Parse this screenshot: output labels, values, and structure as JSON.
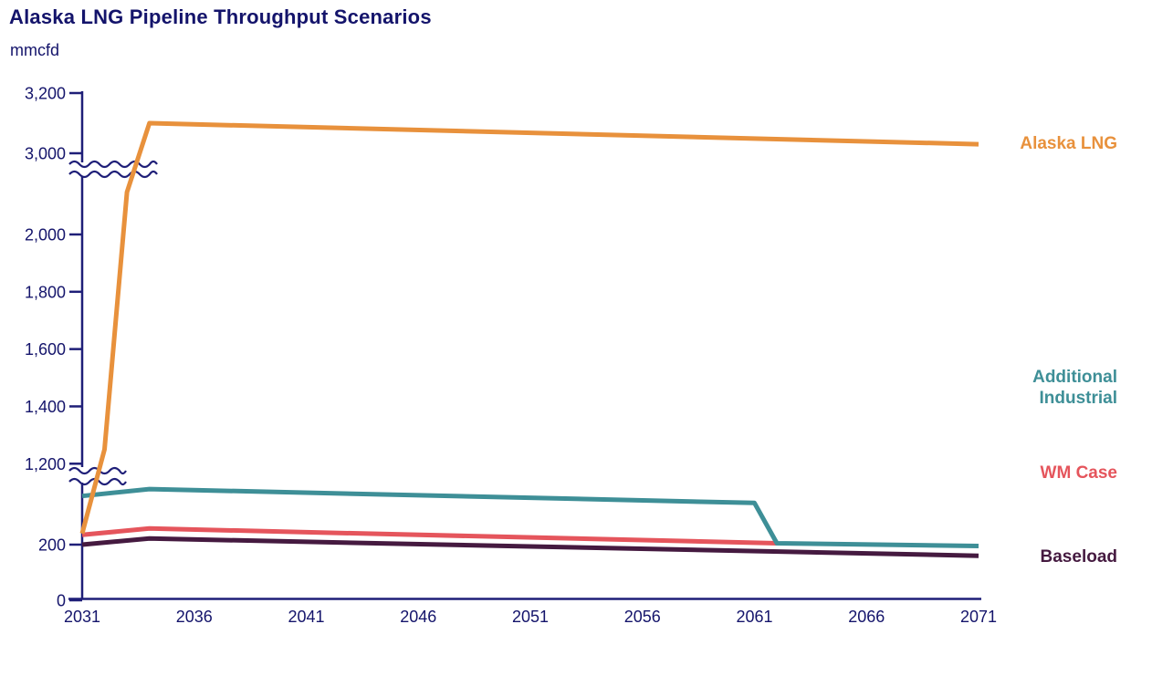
{
  "header": {
    "title": "Alaska LNG Pipeline Throughput Scenarios",
    "unit": "mmcfd"
  },
  "colors": {
    "navy_text": "#14146B",
    "axis": "#1F1F78",
    "orange": "#E8913C",
    "teal": "#3E8F97",
    "coral": "#E5555C",
    "plum": "#451A40"
  },
  "chart_data": {
    "type": "line",
    "title": "Alaska LNG Pipeline Throughput Scenarios",
    "ylabel": "mmcfd",
    "xlabel": "",
    "grid": false,
    "legend_position": "right-outside",
    "x_range": [
      2031,
      2071
    ],
    "x_ticks": [
      2031,
      2036,
      2041,
      2046,
      2051,
      2056,
      2061,
      2066,
      2071
    ],
    "y_ticks": [
      {
        "value": 0,
        "label": "0"
      },
      {
        "value": 200,
        "label": "200"
      },
      {
        "value": 1200,
        "label": "1,200"
      },
      {
        "value": 1400,
        "label": "1,400"
      },
      {
        "value": 1600,
        "label": "1,600"
      },
      {
        "value": 1800,
        "label": "1,800"
      },
      {
        "value": 2000,
        "label": "2,000"
      },
      {
        "value": 3000,
        "label": "3,000"
      },
      {
        "value": 3200,
        "label": "3,200"
      }
    ],
    "axis_breaks": [
      {
        "between_values": [
          430,
          1185
        ]
      },
      {
        "between_values": [
          2210,
          2970
        ]
      }
    ],
    "series": [
      {
        "name": "Alaska LNG",
        "color": "#E8913C",
        "points": [
          [
            2031,
            240
          ],
          [
            2032,
            1250
          ],
          [
            2033,
            2150
          ],
          [
            2034,
            3100
          ],
          [
            2071,
            3030
          ]
        ]
      },
      {
        "name": "Additional Industrial",
        "color": "#3E8F97",
        "points": [
          [
            2031,
            375
          ],
          [
            2034,
            400
          ],
          [
            2061,
            350
          ],
          [
            2062,
            205
          ],
          [
            2071,
            195
          ]
        ]
      },
      {
        "name": "WM Case",
        "color": "#E5555C",
        "points": [
          [
            2031,
            235
          ],
          [
            2034,
            258
          ],
          [
            2062,
            205
          ]
        ]
      },
      {
        "name": "Baseload",
        "color": "#451A40",
        "points": [
          [
            2031,
            200
          ],
          [
            2034,
            222
          ],
          [
            2071,
            160
          ]
        ]
      }
    ]
  },
  "legend": {
    "items": [
      {
        "label": "Alaska LNG",
        "display": "Alaska LNG",
        "color": "#E8913C"
      },
      {
        "label": "Additional Industrial",
        "display": "Additional\nIndustrial",
        "color": "#3E8F97"
      },
      {
        "label": "WM Case",
        "display": "WM Case",
        "color": "#E5555C"
      },
      {
        "label": "Baseload",
        "display": "Baseload",
        "color": "#451A40"
      }
    ]
  }
}
